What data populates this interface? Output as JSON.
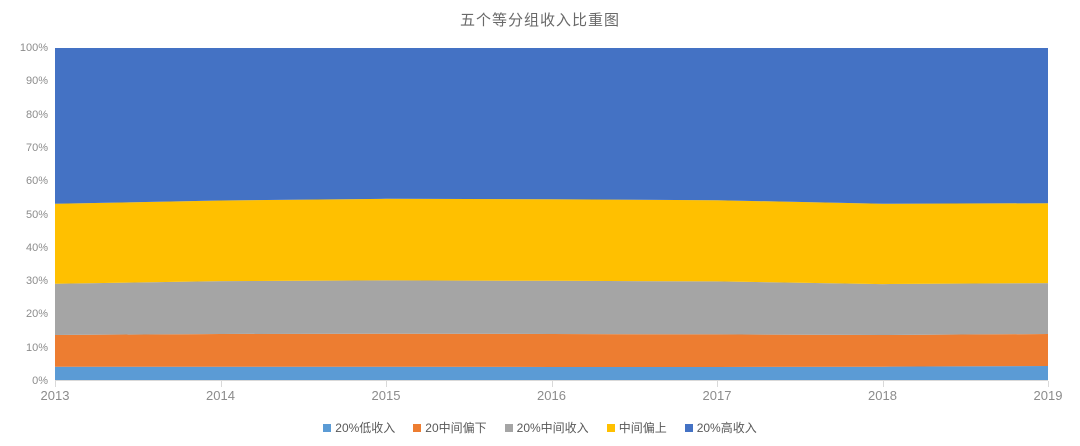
{
  "title": "五个等分组收入比重图",
  "chart_data": {
    "type": "area",
    "stacked": true,
    "percent_stacked": true,
    "title": "五个等分组收入比重图",
    "categories": [
      "2013",
      "2014",
      "2015",
      "2016",
      "2017",
      "2018",
      "2019"
    ],
    "series": [
      {
        "name": "20%低收入",
        "color": "#5B9BD5",
        "values": [
          4.3,
          4.3,
          4.3,
          4.2,
          4.2,
          4.3,
          4.5
        ]
      },
      {
        "name": "20中间偏下",
        "color": "#ED7D31",
        "values": [
          9.5,
          9.8,
          9.9,
          9.9,
          9.8,
          9.5,
          9.6
        ]
      },
      {
        "name": "20%中间收入",
        "color": "#A5A5A5",
        "values": [
          15.4,
          15.9,
          16.0,
          16.0,
          15.9,
          15.3,
          15.3
        ]
      },
      {
        "name": "中间偏上",
        "color": "#FFC000",
        "values": [
          24.0,
          24.2,
          24.5,
          24.5,
          24.4,
          24.1,
          24.0
        ]
      },
      {
        "name": "20%高收入",
        "color": "#4472C4",
        "values": [
          46.8,
          45.8,
          45.3,
          45.4,
          45.7,
          46.8,
          46.6
        ]
      }
    ],
    "xlabel": "",
    "ylabel": "",
    "ylim": [
      0,
      100
    ],
    "y_ticks": [
      "0%",
      "10%",
      "20%",
      "30%",
      "40%",
      "50%",
      "60%",
      "70%",
      "80%",
      "90%",
      "100%"
    ],
    "grid": false,
    "legend_position": "bottom",
    "axis_color": "#d9d9d9",
    "label_color": "#8c8c8c"
  }
}
